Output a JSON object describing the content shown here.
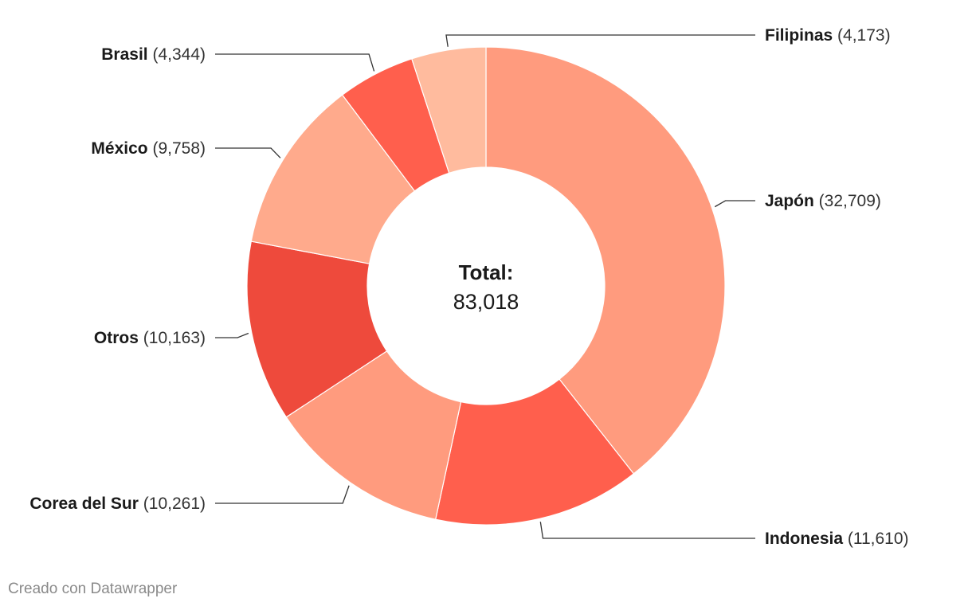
{
  "chart_data": {
    "type": "pie",
    "subtype": "donut",
    "center_label": "Total:",
    "center_value": "83,018",
    "slices": [
      {
        "label": "Japón",
        "value": 32709,
        "value_text": "(32,709)",
        "color": "#ff9b7e"
      },
      {
        "label": "Indonesia",
        "value": 11610,
        "value_text": "(11,610)",
        "color": "#ff5f4d"
      },
      {
        "label": "Corea del Sur",
        "value": 10261,
        "value_text": "(10,261)",
        "color": "#ff9b7e"
      },
      {
        "label": "Otros",
        "value": 10163,
        "value_text": "(10,163)",
        "color": "#ee4a3c"
      },
      {
        "label": "México",
        "value": 9758,
        "value_text": "(9,758)",
        "color": "#ffaa8c"
      },
      {
        "label": "Brasil",
        "value": 4344,
        "value_text": "(4,344)",
        "color": "#ff5f4d"
      },
      {
        "label": "Filipinas",
        "value": 4173,
        "value_text": "(4,173)",
        "color": "#ffbb9e"
      }
    ]
  },
  "footer": {
    "credit": "Creado con Datawrapper"
  }
}
